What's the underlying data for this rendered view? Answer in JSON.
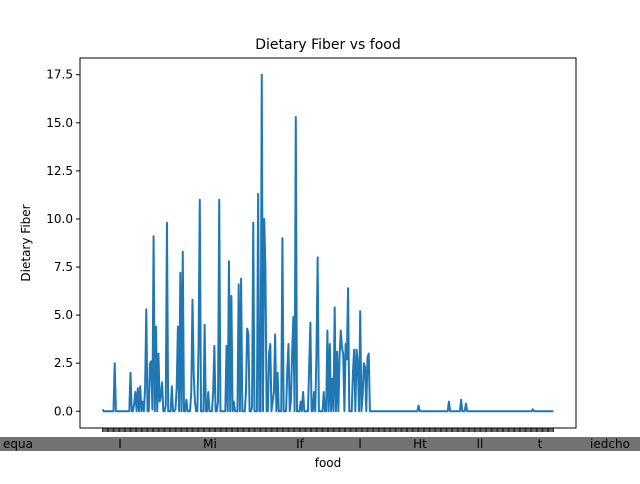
{
  "chart_data": {
    "type": "line",
    "title": "Dietary Fiber vs food",
    "xlabel": "food",
    "ylabel": "Dietary Fiber",
    "ylim": [
      -0.87,
      18.37
    ],
    "yticks": [
      "0.0",
      "2.5",
      "5.0",
      "7.5",
      "10.0",
      "12.5",
      "15.0",
      "17.5"
    ],
    "ytick_values": [
      0,
      2.5,
      5,
      7.5,
      10,
      12.5,
      15,
      17.5
    ],
    "grid": false,
    "legend": "none",
    "line_color": "#1f77b4",
    "point_count": 350,
    "x_index_range": [
      0,
      349
    ],
    "y": [
      0.1,
      0,
      0,
      0,
      0,
      0,
      0,
      0,
      0,
      0,
      2.5,
      0,
      0,
      0,
      0,
      0,
      0,
      0,
      0,
      0,
      0,
      0,
      0,
      2,
      0,
      0,
      0.4,
      1,
      0,
      1.2,
      0,
      1.3,
      0,
      0.5,
      0,
      1.2,
      5.3,
      0,
      0,
      2.5,
      2.6,
      0.1,
      9.1,
      0,
      4.4,
      0,
      3,
      0.5,
      0.8,
      1.5,
      0,
      0,
      0.3,
      9.8,
      0,
      0,
      0,
      1.3,
      0,
      0,
      0.1,
      1.2,
      4.4,
      0,
      7.2,
      0,
      8.3,
      0,
      0,
      0.6,
      0,
      0,
      0,
      1,
      5.8,
      2,
      0.5,
      0,
      0,
      3.4,
      11,
      0,
      0,
      0,
      4.5,
      0,
      0,
      1,
      0,
      0,
      0,
      1,
      3.4,
      0,
      0,
      0.5,
      11,
      0,
      0,
      0,
      0,
      0,
      3.4,
      0,
      7.8,
      0,
      6,
      0,
      0.5,
      0,
      0,
      0,
      6.6,
      0,
      6.9,
      0,
      0,
      0,
      1,
      4.3,
      4,
      0,
      0,
      0.2,
      9.8,
      0,
      0,
      0,
      11.3,
      0,
      0,
      17.5,
      0,
      10,
      7.5,
      0,
      0,
      3,
      3.5,
      0,
      0.5,
      1,
      4,
      0,
      2,
      0,
      0,
      0,
      9,
      0,
      0,
      0,
      2.1,
      3.5,
      0,
      0.5,
      3.1,
      4.9,
      0,
      15.3,
      0,
      0,
      0,
      0.5,
      0,
      1,
      0,
      0,
      0,
      0,
      2.3,
      4.6,
      0,
      0,
      1,
      0,
      3,
      8,
      0,
      0,
      0,
      0,
      1,
      0,
      0,
      4.2,
      0,
      3.5,
      0,
      1.7,
      0,
      5.4,
      0,
      3.1,
      0,
      2.8,
      4.2,
      3.3,
      3,
      0,
      3.5,
      2.7,
      6.4,
      0,
      0,
      0,
      2,
      3.2,
      0,
      3.2,
      2.5,
      0,
      5.2,
      0,
      0.8,
      2.5,
      2.3,
      0,
      2.8,
      3,
      0,
      0,
      0,
      0,
      0,
      0,
      0,
      0,
      0,
      0,
      0,
      0,
      0,
      0,
      0,
      0,
      0,
      0,
      0,
      0,
      0,
      0,
      0,
      0,
      0,
      0,
      0,
      0,
      0,
      0,
      0,
      0,
      0,
      0,
      0,
      0,
      0,
      0,
      0,
      0,
      0.3,
      0,
      0,
      0,
      0,
      0,
      0,
      0,
      0,
      0,
      0,
      0,
      0,
      0,
      0,
      0,
      0,
      0,
      0,
      0,
      0,
      0,
      0,
      0,
      0,
      0.5,
      0,
      0,
      0,
      0,
      0,
      0,
      0,
      0,
      0,
      0.6,
      0,
      0,
      0,
      0.4,
      0,
      0,
      0,
      0,
      0,
      0,
      0,
      0,
      0,
      0,
      0,
      0,
      0,
      0,
      0,
      0,
      0,
      0,
      0,
      0,
      0,
      0,
      0,
      0,
      0,
      0,
      0,
      0,
      0,
      0,
      0,
      0,
      0,
      0,
      0,
      0,
      0,
      0,
      0,
      0,
      0,
      0,
      0,
      0,
      0,
      0,
      0,
      0,
      0,
      0,
      0,
      0,
      0,
      0,
      0.1,
      0,
      0,
      0,
      0,
      0,
      0,
      0,
      0,
      0,
      0,
      0,
      0,
      0,
      0,
      0,
      0,
      0
    ],
    "x_tick_labels_visible": [
      "equa",
      "I",
      "Mi",
      "If",
      "l",
      "Ht",
      "ll",
      "t",
      "iedcho"
    ]
  }
}
